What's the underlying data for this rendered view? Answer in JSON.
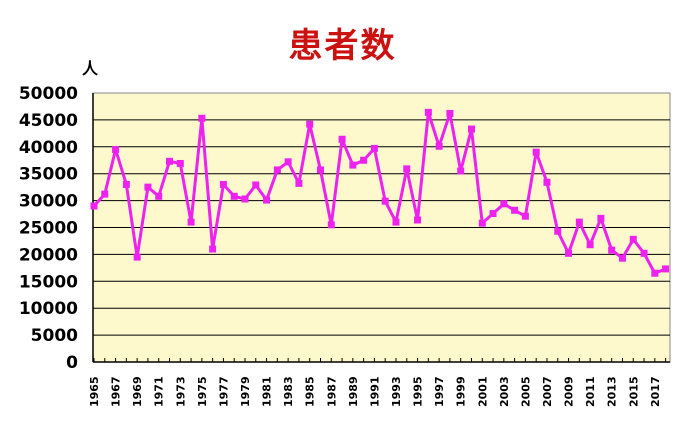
{
  "chart_data": {
    "type": "line",
    "title": "患者数",
    "xlabel": "",
    "ylabel": "人",
    "ylim": [
      0,
      50000
    ],
    "yticks": [
      0,
      5000,
      10000,
      15000,
      20000,
      25000,
      30000,
      35000,
      40000,
      45000,
      50000
    ],
    "grid": true,
    "legend": null,
    "x": [
      1965,
      1966,
      1967,
      1968,
      1969,
      1970,
      1971,
      1972,
      1973,
      1974,
      1975,
      1976,
      1977,
      1978,
      1979,
      1980,
      1981,
      1982,
      1983,
      1984,
      1985,
      1986,
      1987,
      1988,
      1989,
      1990,
      1991,
      1992,
      1993,
      1994,
      1995,
      1996,
      1997,
      1998,
      1999,
      2000,
      2001,
      2002,
      2003,
      2004,
      2005,
      2006,
      2007,
      2008,
      2009,
      2010,
      2011,
      2012,
      2013,
      2014,
      2015,
      2016,
      2017,
      2018
    ],
    "xtick_labels": [
      "1965",
      "1967",
      "1969",
      "1971",
      "1973",
      "1975",
      "1977",
      "1979",
      "1981",
      "1983",
      "1985",
      "1987",
      "1989",
      "1991",
      "1993",
      "1995",
      "1997",
      "1999",
      "2001",
      "2003",
      "2005",
      "2007",
      "2009",
      "2011",
      "2013",
      "2015",
      "2017"
    ],
    "series": [
      {
        "name": "患者数",
        "color": "#ee22ee",
        "values": [
          29000,
          31200,
          39500,
          33000,
          19500,
          32500,
          30800,
          37300,
          36900,
          26000,
          45300,
          21000,
          33000,
          30800,
          30300,
          32900,
          30100,
          35700,
          37200,
          33200,
          44200,
          35700,
          25500,
          41400,
          36600,
          37500,
          39700,
          29900,
          26000,
          35900,
          26400,
          46400,
          40100,
          46200,
          35500,
          43300,
          25800,
          27600,
          29400,
          28200,
          27100,
          39000,
          33400,
          24300,
          20200,
          26000,
          21800,
          26700,
          20800,
          19300,
          22800,
          20200,
          16500,
          17300
        ]
      }
    ],
    "plot_background": "#fdf9cc",
    "title_color": "#cc1111"
  }
}
